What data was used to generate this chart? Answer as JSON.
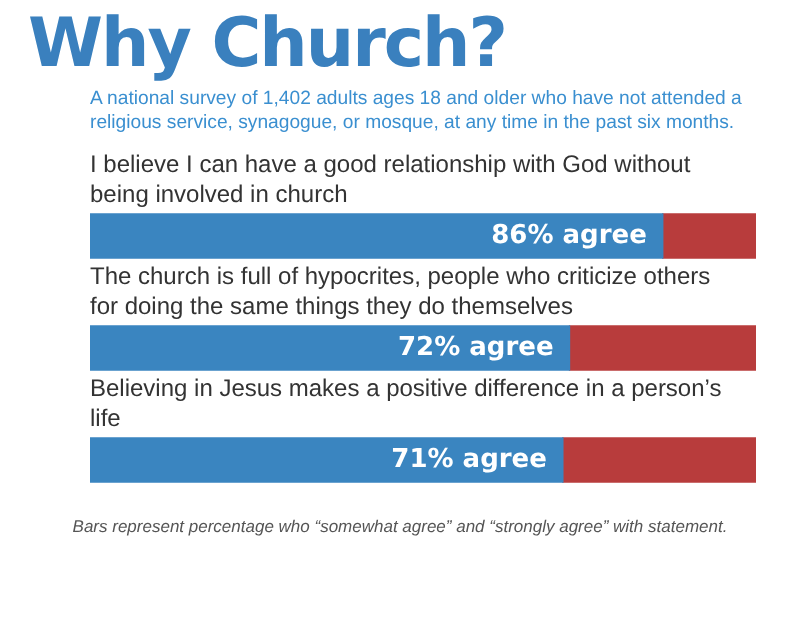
{
  "chart_data": {
    "type": "bar",
    "orientation": "horizontal",
    "stacked": true,
    "title": "Why Church?",
    "subtitle": "A national survey of 1,402 adults ages 18 and older who have not attended a religious service, synagogue, or mosque, at any time in the past six months.",
    "categories": [
      "I believe I can have a good relationship with God without being involved in church",
      "The church is full of hypocrites, people who criticize others for doing the same things they do themselves",
      "Believing in Jesus makes a positive difference in a person’s life"
    ],
    "series": [
      {
        "color": "#3a85c0",
        "values": [
          86,
          72,
          71
        ],
        "value_labels": [
          "86% agree",
          "72% agree",
          "71% agree"
        ]
      },
      {
        "color": "#b83c3c",
        "values": [
          14,
          28,
          29
        ]
      }
    ],
    "xlim": [
      0,
      100
    ],
    "tick_labels": false,
    "annotations": [
      "Bars represent percentage who “somewhat agree” and “strongly agree” with statement."
    ]
  }
}
